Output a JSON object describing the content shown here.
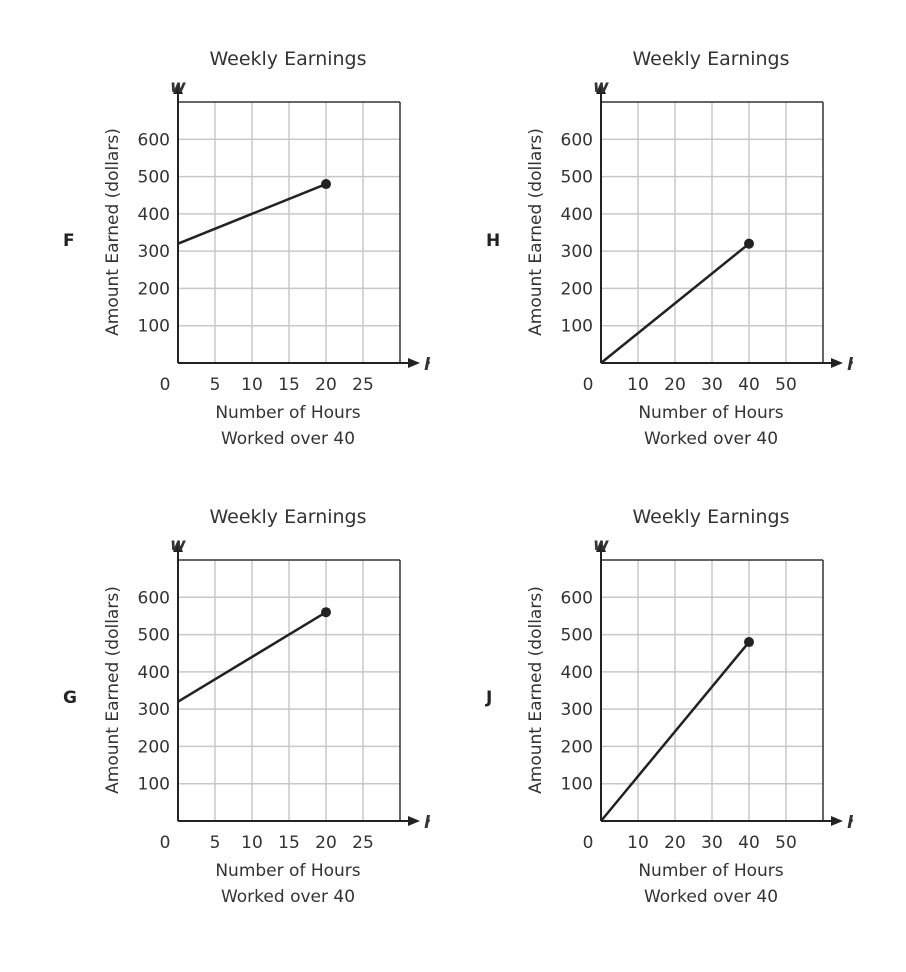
{
  "chart_data": [
    {
      "option": "F",
      "type": "line",
      "title": "Weekly Earnings",
      "y_var": "w",
      "x_var": "h",
      "ylabel": "Amount Earned (dollars)",
      "xlabel": [
        "Number of Hours",
        "Worked over 40"
      ],
      "xticks": [
        "0",
        "5",
        "10",
        "15",
        "20",
        "25"
      ],
      "xstep": 5,
      "xlim": [
        0,
        30
      ],
      "yticks": [
        "100",
        "200",
        "300",
        "400",
        "500",
        "600"
      ],
      "ylim": [
        0,
        700
      ],
      "points": [
        [
          0,
          320
        ],
        [
          20,
          480
        ]
      ],
      "endpoint_dot": true
    },
    {
      "option": "H",
      "type": "line",
      "title": "Weekly Earnings",
      "y_var": "w",
      "x_var": "h",
      "ylabel": "Amount Earned (dollars)",
      "xlabel": [
        "Number of Hours",
        "Worked over 40"
      ],
      "xticks": [
        "0",
        "10",
        "20",
        "30",
        "40",
        "50"
      ],
      "xstep": 10,
      "xlim": [
        0,
        60
      ],
      "yticks": [
        "100",
        "200",
        "300",
        "400",
        "500",
        "600"
      ],
      "ylim": [
        0,
        700
      ],
      "points": [
        [
          0,
          0
        ],
        [
          40,
          320
        ]
      ],
      "endpoint_dot": true
    },
    {
      "option": "G",
      "type": "line",
      "title": "Weekly Earnings",
      "y_var": "w",
      "x_var": "h",
      "ylabel": "Amount Earned (dollars)",
      "xlabel": [
        "Number of Hours",
        "Worked over 40"
      ],
      "xticks": [
        "0",
        "5",
        "10",
        "15",
        "20",
        "25"
      ],
      "xstep": 5,
      "xlim": [
        0,
        30
      ],
      "yticks": [
        "100",
        "200",
        "300",
        "400",
        "500",
        "600"
      ],
      "ylim": [
        0,
        700
      ],
      "points": [
        [
          0,
          320
        ],
        [
          20,
          560
        ]
      ],
      "endpoint_dot": true
    },
    {
      "option": "J",
      "type": "line",
      "title": "Weekly Earnings",
      "y_var": "w",
      "x_var": "h",
      "ylabel": "Amount Earned (dollars)",
      "xlabel": [
        "Number of Hours",
        "Worked over 40"
      ],
      "xticks": [
        "0",
        "10",
        "20",
        "30",
        "40",
        "50"
      ],
      "xstep": 10,
      "xlim": [
        0,
        60
      ],
      "yticks": [
        "100",
        "200",
        "300",
        "400",
        "500",
        "600"
      ],
      "ylim": [
        0,
        700
      ],
      "points": [
        [
          0,
          0
        ],
        [
          40,
          480
        ]
      ],
      "endpoint_dot": true
    }
  ]
}
